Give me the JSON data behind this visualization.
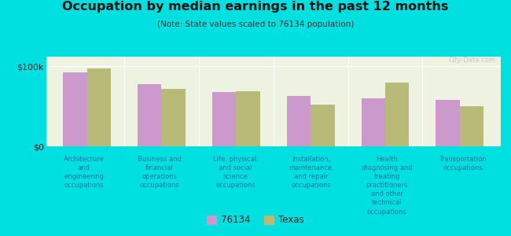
{
  "title": "Occupation by median earnings in the past 12 months",
  "subtitle": "(Note: State values scaled to 76134 population)",
  "background_color": "#00e0e0",
  "plot_bg_color": "#edf3e0",
  "bar_color_76134": "#cc99cc",
  "bar_color_texas": "#b8bb78",
  "categories": [
    "Architecture\nand\nengineering\noccupations",
    "Business and\nfinancial\noperations\noccupations",
    "Life, physical,\nand social\nscience\noccupations",
    "Installation,\nmaintenance,\nand repair\noccupations",
    "Health\ndiagnosing and\ntreating\npractitioners\nand other\ntechnical\noccupations",
    "Transportation\noccupations"
  ],
  "values_76134": [
    92000,
    78000,
    68000,
    63000,
    60000,
    58000
  ],
  "values_texas": [
    97000,
    72000,
    69000,
    52000,
    80000,
    50000
  ],
  "ylim": [
    0,
    112000
  ],
  "yticks": [
    0,
    100000
  ],
  "ytick_labels": [
    "$0",
    "$100k"
  ],
  "legend_76134": "76134",
  "legend_texas": "Texas",
  "watermark": "City-Data.com"
}
